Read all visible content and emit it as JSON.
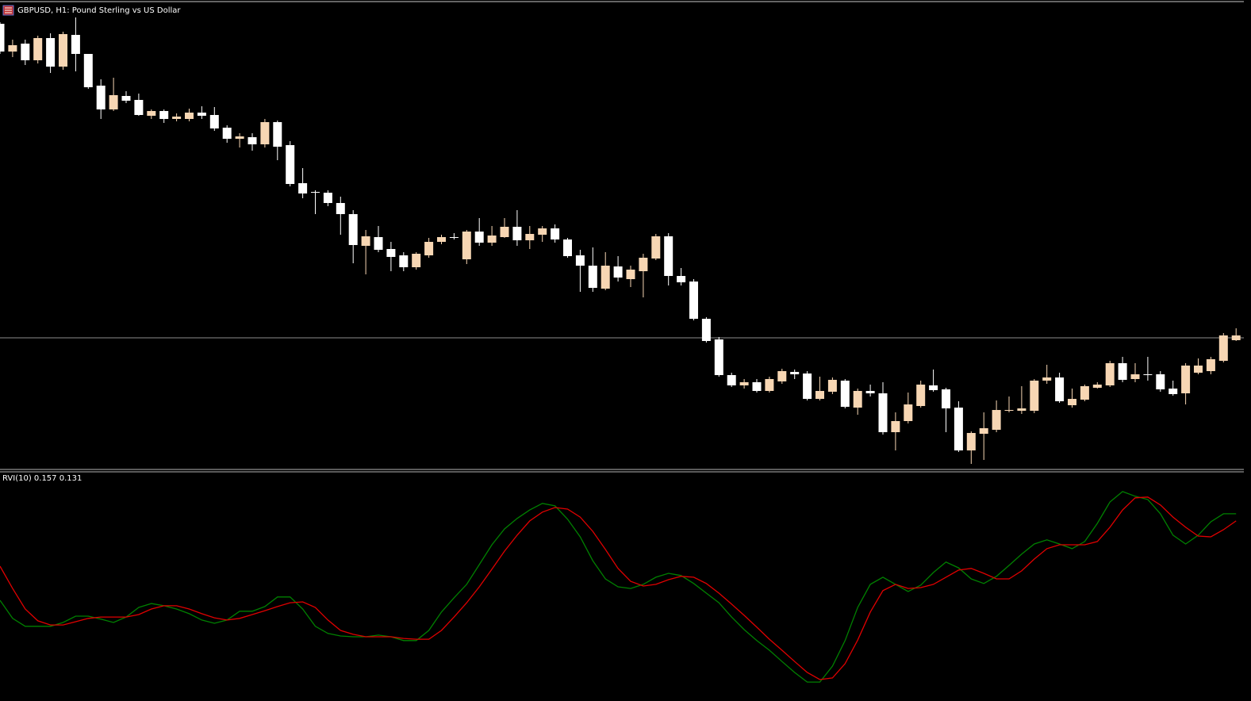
{
  "header": {
    "title": "GBPUSD, H1:  Pound Sterling vs US Dollar"
  },
  "chart_data": [
    {
      "type": "candlestick",
      "up_color": "#f7d6b3",
      "down_color": "#ffffff",
      "ylim": [
        10,
        597
      ],
      "hline": 174,
      "hline_color": "#8c8c8c",
      "ohlc": [
        [
          570,
          572,
          532,
          535
        ],
        [
          535,
          550,
          528,
          543
        ],
        [
          545,
          550,
          518,
          524
        ],
        [
          524,
          555,
          520,
          552
        ],
        [
          552,
          558,
          508,
          516
        ],
        [
          516,
          560,
          512,
          557
        ],
        [
          556,
          578,
          510,
          532
        ],
        [
          532,
          532,
          488,
          490
        ],
        [
          492,
          500,
          450,
          462
        ],
        [
          462,
          502,
          460,
          480
        ],
        [
          479,
          485,
          470,
          473
        ],
        [
          474,
          482,
          454,
          455
        ],
        [
          454,
          462,
          450,
          460
        ],
        [
          460,
          462,
          445,
          450
        ],
        [
          450,
          457,
          447,
          453
        ],
        [
          450,
          463,
          447,
          458
        ],
        [
          458,
          466,
          450,
          454
        ],
        [
          455,
          465,
          435,
          438
        ],
        [
          439,
          442,
          420,
          425
        ],
        [
          425,
          432,
          414,
          428
        ],
        [
          427,
          432,
          410,
          418
        ],
        [
          418,
          450,
          414,
          446
        ],
        [
          446,
          448,
          398,
          415
        ],
        [
          417,
          422,
          365,
          368
        ],
        [
          369,
          388,
          350,
          356
        ],
        [
          358,
          360,
          330,
          357
        ],
        [
          357,
          360,
          340,
          344
        ],
        [
          344,
          352,
          304,
          330
        ],
        [
          330,
          335,
          268,
          291
        ],
        [
          290,
          310,
          254,
          302
        ],
        [
          301,
          315,
          282,
          285
        ],
        [
          286,
          295,
          258,
          276
        ],
        [
          278,
          282,
          258,
          263
        ],
        [
          263,
          282,
          260,
          280
        ],
        [
          278,
          300,
          275,
          295
        ],
        [
          295,
          304,
          292,
          301
        ],
        [
          301,
          306,
          298,
          300
        ],
        [
          273,
          310,
          267,
          308
        ],
        [
          308,
          325,
          290,
          294
        ],
        [
          294,
          315,
          290,
          303
        ],
        [
          301,
          325,
          300,
          314
        ],
        [
          314,
          335,
          290,
          297
        ],
        [
          297,
          315,
          286,
          305
        ],
        [
          304,
          315,
          295,
          312
        ],
        [
          312,
          317,
          294,
          298
        ],
        [
          298,
          300,
          275,
          277
        ],
        [
          278,
          285,
          232,
          265
        ],
        [
          265,
          288,
          232,
          237
        ],
        [
          236,
          282,
          234,
          265
        ],
        [
          264,
          277,
          245,
          250
        ],
        [
          248,
          265,
          238,
          260
        ],
        [
          258,
          280,
          225,
          275
        ],
        [
          274,
          305,
          272,
          302
        ],
        [
          302,
          306,
          240,
          252
        ],
        [
          252,
          262,
          240,
          244
        ],
        [
          245,
          248,
          196,
          198
        ],
        [
          198,
          200,
          168,
          170
        ],
        [
          172,
          175,
          125,
          127
        ],
        [
          127,
          130,
          112,
          114
        ],
        [
          114,
          122,
          110,
          118
        ],
        [
          118,
          122,
          105,
          107
        ],
        [
          107,
          125,
          105,
          122
        ],
        [
          119,
          135,
          116,
          132
        ],
        [
          131,
          134,
          122,
          128
        ],
        [
          129,
          132,
          95,
          97
        ],
        [
          97,
          125,
          95,
          107
        ],
        [
          106,
          124,
          103,
          121
        ],
        [
          120,
          122,
          85,
          87
        ],
        [
          86,
          110,
          77,
          107
        ],
        [
          107,
          115,
          100,
          104
        ],
        [
          104,
          118,
          52,
          55
        ],
        [
          55,
          80,
          32,
          69
        ],
        [
          69,
          105,
          66,
          90
        ],
        [
          88,
          120,
          86,
          115
        ],
        [
          114,
          134,
          106,
          108
        ],
        [
          109,
          111,
          55,
          85
        ],
        [
          86,
          94,
          30,
          32
        ],
        [
          32,
          56,
          15,
          54
        ],
        [
          53,
          80,
          20,
          60
        ],
        [
          58,
          95,
          55,
          83
        ],
        [
          82,
          100,
          80,
          83
        ],
        [
          82,
          113,
          78,
          85
        ],
        [
          82,
          122,
          79,
          120
        ],
        [
          120,
          140,
          116,
          124
        ],
        [
          124,
          130,
          92,
          94
        ],
        [
          89,
          110,
          86,
          97
        ],
        [
          96,
          115,
          94,
          113
        ],
        [
          111,
          118,
          110,
          115
        ],
        [
          114,
          145,
          112,
          142
        ],
        [
          142,
          150,
          118,
          121
        ],
        [
          122,
          142,
          118,
          128
        ],
        [
          128,
          150,
          120,
          127
        ],
        [
          128,
          132,
          106,
          109
        ],
        [
          110,
          120,
          101,
          103
        ],
        [
          104,
          142,
          90,
          139
        ],
        [
          130,
          148,
          128,
          139
        ],
        [
          132,
          150,
          128,
          147
        ],
        [
          145,
          180,
          143,
          177
        ],
        [
          171,
          186,
          170,
          177
        ]
      ]
    },
    {
      "type": "line",
      "title": "RVI(10) 0.157 0.131",
      "ylim": [
        -0.525,
        0.307
      ],
      "series": [
        {
          "color": "#008000",
          "values": [
            -0.158,
            -0.224,
            -0.253,
            -0.253,
            -0.253,
            -0.239,
            -0.216,
            -0.216,
            -0.227,
            -0.239,
            -0.219,
            -0.184,
            -0.17,
            -0.178,
            -0.19,
            -0.207,
            -0.23,
            -0.242,
            -0.23,
            -0.198,
            -0.198,
            -0.181,
            -0.146,
            -0.146,
            -0.19,
            -0.253,
            -0.279,
            -0.288,
            -0.291,
            -0.291,
            -0.285,
            -0.291,
            -0.305,
            -0.305,
            -0.268,
            -0.201,
            -0.149,
            -0.1,
            -0.028,
            0.044,
            0.102,
            0.14,
            0.171,
            0.195,
            0.186,
            0.137,
            0.073,
            -0.014,
            -0.08,
            -0.109,
            -0.115,
            -0.1,
            -0.074,
            -0.06,
            -0.068,
            -0.097,
            -0.132,
            -0.167,
            -0.219,
            -0.265,
            -0.305,
            -0.34,
            -0.381,
            -0.421,
            -0.456,
            -0.456,
            -0.398,
            -0.305,
            -0.184,
            -0.1,
            -0.074,
            -0.1,
            -0.126,
            -0.103,
            -0.057,
            -0.019,
            -0.04,
            -0.08,
            -0.097,
            -0.071,
            -0.031,
            0.01,
            0.047,
            0.062,
            0.047,
            0.03,
            0.056,
            0.122,
            0.2,
            0.238,
            0.221,
            0.209,
            0.157,
            0.079,
            0.047,
            0.079,
            0.128,
            0.157,
            0.157
          ]
        },
        {
          "color": "#e00000",
          "values": [
            -0.034,
            -0.115,
            -0.19,
            -0.233,
            -0.248,
            -0.248,
            -0.236,
            -0.224,
            -0.219,
            -0.219,
            -0.219,
            -0.21,
            -0.19,
            -0.178,
            -0.178,
            -0.19,
            -0.207,
            -0.222,
            -0.23,
            -0.224,
            -0.21,
            -0.196,
            -0.181,
            -0.167,
            -0.164,
            -0.184,
            -0.23,
            -0.268,
            -0.282,
            -0.291,
            -0.291,
            -0.291,
            -0.297,
            -0.3,
            -0.3,
            -0.268,
            -0.219,
            -0.167,
            -0.109,
            -0.045,
            0.021,
            0.079,
            0.131,
            0.163,
            0.18,
            0.174,
            0.145,
            0.093,
            0.027,
            -0.042,
            -0.089,
            -0.106,
            -0.1,
            -0.083,
            -0.071,
            -0.074,
            -0.097,
            -0.132,
            -0.172,
            -0.213,
            -0.256,
            -0.3,
            -0.34,
            -0.381,
            -0.421,
            -0.447,
            -0.441,
            -0.389,
            -0.303,
            -0.201,
            -0.123,
            -0.1,
            -0.115,
            -0.112,
            -0.1,
            -0.074,
            -0.048,
            -0.042,
            -0.06,
            -0.08,
            -0.08,
            -0.051,
            -0.008,
            0.03,
            0.044,
            0.044,
            0.044,
            0.056,
            0.108,
            0.171,
            0.215,
            0.218,
            0.189,
            0.145,
            0.108,
            0.076,
            0.073,
            0.099,
            0.131
          ]
        }
      ]
    }
  ]
}
